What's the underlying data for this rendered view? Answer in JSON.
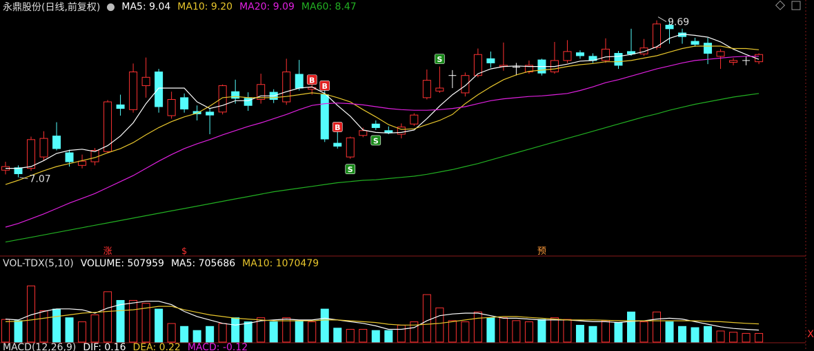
{
  "chart_data": [
    {
      "type": "candlestick",
      "title": "永鼎股份(日线,前复权)",
      "ylim": [
        5.78,
        10.03
      ],
      "up_color": "#ff3232",
      "down_color": "#54fcfc",
      "flat_color": "#ffffff",
      "open": [
        7.19,
        7.23,
        7.22,
        7.41,
        7.76,
        7.48,
        7.27,
        7.33,
        7.5,
        8.28,
        8.2,
        8.6,
        8.83,
        8.1,
        8.4,
        8.17,
        8.16,
        8.16,
        8.5,
        8.39,
        8.37,
        8.49,
        8.33,
        8.79,
        8.54,
        8.45,
        7.64,
        7.41,
        7.77,
        7.96,
        7.85,
        7.79,
        7.96,
        8.4,
        8.51,
        8.77,
        8.48,
        8.77,
        9.05,
        8.92,
        8.91,
        8.83,
        9.03,
        8.83,
        9.02,
        9.15,
        9.09,
        9.02,
        9.14,
        9.17,
        9.13,
        9.24,
        9.61,
        9.48,
        9.34,
        9.31,
        9.09,
        8.99,
        9.02,
        9.0
      ],
      "high": [
        7.33,
        7.27,
        7.75,
        7.84,
        7.99,
        7.53,
        7.45,
        7.56,
        8.36,
        8.45,
        8.97,
        9.07,
        8.88,
        8.5,
        8.47,
        8.27,
        8.22,
        8.62,
        8.7,
        8.49,
        8.8,
        8.54,
        9.05,
        9.03,
        8.62,
        8.52,
        7.83,
        7.75,
        7.9,
        8.02,
        7.92,
        7.97,
        8.14,
        8.87,
        8.92,
        8.86,
        8.82,
        9.22,
        9.17,
        9.32,
        8.98,
        9.02,
        9.05,
        9.33,
        9.36,
        9.19,
        9.14,
        9.39,
        9.18,
        9.55,
        9.38,
        9.69,
        9.69,
        9.55,
        9.4,
        9.4,
        9.21,
        9.06,
        9.09,
        9.14
      ],
      "low": [
        7.12,
        7.07,
        7.18,
        7.35,
        7.52,
        7.25,
        7.22,
        7.27,
        7.48,
        8.1,
        8.15,
        8.4,
        8.15,
        8.05,
        8.15,
        8.02,
        7.79,
        8.12,
        8.3,
        8.18,
        8.3,
        8.31,
        8.28,
        8.52,
        8.45,
        7.66,
        7.55,
        7.38,
        7.74,
        7.86,
        7.79,
        7.72,
        7.93,
        8.37,
        8.48,
        8.56,
        8.42,
        8.74,
        8.9,
        8.85,
        8.77,
        8.8,
        8.77,
        8.8,
        8.98,
        9.05,
        8.98,
        8.98,
        8.88,
        9.1,
        9.1,
        9.2,
        9.3,
        9.3,
        9.25,
        8.96,
        8.88,
        8.94,
        8.94,
        8.96
      ],
      "close": [
        7.25,
        7.13,
        7.7,
        7.72,
        7.55,
        7.33,
        7.34,
        7.52,
        8.33,
        8.22,
        8.83,
        8.74,
        8.25,
        8.37,
        8.21,
        8.13,
        8.11,
        8.6,
        8.39,
        8.27,
        8.62,
        8.37,
        8.83,
        8.56,
        8.57,
        7.71,
        7.59,
        7.73,
        7.85,
        7.9,
        7.82,
        7.91,
        8.11,
        8.69,
        8.56,
        8.77,
        8.77,
        9.12,
        8.98,
        8.94,
        8.91,
        8.94,
        8.81,
        9.02,
        9.17,
        9.1,
        9.02,
        9.21,
        8.94,
        9.13,
        9.23,
        9.63,
        9.55,
        9.42,
        9.29,
        9.14,
        9.17,
        9.02,
        9.02,
        9.12
      ],
      "series": [
        {
          "name": "MA5: 9.04",
          "color": "#ffffff",
          "values": [
            7.22,
            7.22,
            7.25,
            7.35,
            7.47,
            7.52,
            7.54,
            7.5,
            7.6,
            7.76,
            7.98,
            8.3,
            8.56,
            8.56,
            8.56,
            8.33,
            8.22,
            8.27,
            8.35,
            8.35,
            8.43,
            8.43,
            8.5,
            8.56,
            8.58,
            8.47,
            8.27,
            8.09,
            7.86,
            7.82,
            7.81,
            7.82,
            7.86,
            8.05,
            8.26,
            8.45,
            8.6,
            8.8,
            8.88,
            8.92,
            8.93,
            8.92,
            8.92,
            8.92,
            8.96,
            9.01,
            9.02,
            9.08,
            9.09,
            9.12,
            9.17,
            9.25,
            9.39,
            9.46,
            9.44,
            9.41,
            9.33,
            9.21,
            9.12,
            9.04
          ]
        },
        {
          "name": "MA10: 9.20",
          "color": "#e8c62c",
          "values": [
            6.95,
            7.02,
            7.1,
            7.18,
            7.25,
            7.3,
            7.35,
            7.4,
            7.48,
            7.55,
            7.65,
            7.78,
            7.9,
            8.0,
            8.08,
            8.14,
            8.26,
            8.4,
            8.42,
            8.4,
            8.4,
            8.4,
            8.42,
            8.45,
            8.48,
            8.46,
            8.4,
            8.33,
            8.2,
            8.08,
            7.95,
            7.87,
            7.88,
            7.95,
            8.02,
            8.12,
            8.3,
            8.45,
            8.58,
            8.7,
            8.78,
            8.84,
            8.86,
            8.88,
            8.92,
            8.95,
            8.97,
            9.0,
            9.0,
            9.02,
            9.06,
            9.1,
            9.16,
            9.22,
            9.26,
            9.26,
            9.26,
            9.22,
            9.22,
            9.2
          ]
        },
        {
          "name": "MA20: 9.09",
          "color": "#e020e0",
          "values": [
            6.24,
            6.3,
            6.38,
            6.46,
            6.55,
            6.64,
            6.72,
            6.8,
            6.9,
            7.0,
            7.1,
            7.22,
            7.34,
            7.45,
            7.55,
            7.63,
            7.7,
            7.78,
            7.85,
            7.92,
            7.98,
            8.05,
            8.12,
            8.2,
            8.27,
            8.3,
            8.31,
            8.3,
            8.28,
            8.25,
            8.22,
            8.2,
            8.19,
            8.19,
            8.2,
            8.22,
            8.25,
            8.3,
            8.35,
            8.38,
            8.4,
            8.42,
            8.43,
            8.45,
            8.47,
            8.52,
            8.58,
            8.65,
            8.7,
            8.76,
            8.82,
            8.88,
            8.93,
            8.98,
            9.02,
            9.04,
            9.06,
            9.08,
            9.09,
            9.09
          ]
        },
        {
          "name": "MA60: 8.47",
          "color": "#22b022",
          "values": [
            5.99,
            6.03,
            6.07,
            6.11,
            6.15,
            6.19,
            6.23,
            6.27,
            6.31,
            6.35,
            6.39,
            6.43,
            6.47,
            6.51,
            6.55,
            6.59,
            6.63,
            6.67,
            6.71,
            6.75,
            6.79,
            6.83,
            6.86,
            6.89,
            6.92,
            6.95,
            6.98,
            7.0,
            7.02,
            7.03,
            7.05,
            7.07,
            7.09,
            7.12,
            7.16,
            7.2,
            7.25,
            7.3,
            7.36,
            7.42,
            7.48,
            7.54,
            7.6,
            7.66,
            7.72,
            7.78,
            7.84,
            7.9,
            7.96,
            8.02,
            8.08,
            8.13,
            8.19,
            8.24,
            8.29,
            8.33,
            8.37,
            8.41,
            8.44,
            8.47
          ]
        }
      ],
      "extremes": [
        {
          "index": 51,
          "value": 9.69
        },
        {
          "index": 1,
          "value": 7.07
        }
      ],
      "signals": [
        {
          "index": 24,
          "label": "B"
        },
        {
          "index": 25,
          "label": "B"
        },
        {
          "index": 26,
          "label": "B"
        },
        {
          "index": 27,
          "label": "S"
        },
        {
          "index": 29,
          "label": "S"
        },
        {
          "index": 34,
          "label": "S"
        }
      ],
      "markers": [
        {
          "index": 8,
          "label": "涨"
        },
        {
          "index": 14,
          "label": "$"
        },
        {
          "index": 42,
          "label": "预"
        }
      ]
    },
    {
      "type": "bar",
      "title": "VOL-TDX(5,10)",
      "ylim": [
        0,
        4250000
      ],
      "series": [
        {
          "name": "VOLUME: 507959",
          "color": "#ffffff",
          "values": [
            1330000,
            1260000,
            3300000,
            1840000,
            1940000,
            1430000,
            1190000,
            1600000,
            2960000,
            2450000,
            2450000,
            2280000,
            1940000,
            1090000,
            920000,
            680000,
            920000,
            1090000,
            1430000,
            1190000,
            1430000,
            1190000,
            1430000,
            1260000,
            1190000,
            1940000,
            820000,
            750000,
            750000,
            680000,
            680000,
            990000,
            1190000,
            2790000,
            2010000,
            1260000,
            1190000,
            1770000,
            1430000,
            1430000,
            1260000,
            1190000,
            1330000,
            1430000,
            1330000,
            990000,
            920000,
            1260000,
            1160000,
            1770000,
            1190000,
            1770000,
            1190000,
            920000,
            850000,
            920000,
            650000,
            580000,
            510000,
            507959
          ]
        },
        {
          "name": "MA5: 705686",
          "color": "#ffffff",
          "values": [
            1350000,
            1300000,
            1600000,
            1800000,
            1950000,
            1950000,
            1900000,
            1700000,
            2000000,
            2200000,
            2300000,
            2400000,
            2400000,
            2200000,
            1800000,
            1500000,
            1300000,
            1100000,
            1000000,
            1100000,
            1250000,
            1300000,
            1350000,
            1300000,
            1300000,
            1400000,
            1300000,
            1200000,
            1100000,
            950000,
            750000,
            750000,
            850000,
            1250000,
            1550000,
            1650000,
            1700000,
            1700000,
            1550000,
            1400000,
            1400000,
            1350000,
            1300000,
            1300000,
            1300000,
            1250000,
            1200000,
            1200000,
            1150000,
            1220000,
            1250000,
            1350000,
            1400000,
            1350000,
            1200000,
            1050000,
            900000,
            800000,
            750000,
            705686
          ]
        },
        {
          "name": "MA10: 1070479",
          "color": "#e8c62c",
          "values": [
            1200000,
            1220000,
            1300000,
            1400000,
            1500000,
            1600000,
            1700000,
            1750000,
            1800000,
            1850000,
            1900000,
            2000000,
            2100000,
            2100000,
            1900000,
            1750000,
            1600000,
            1500000,
            1400000,
            1350000,
            1300000,
            1250000,
            1250000,
            1250000,
            1250000,
            1300000,
            1300000,
            1250000,
            1200000,
            1150000,
            1050000,
            1000000,
            1000000,
            1050000,
            1100000,
            1200000,
            1300000,
            1400000,
            1450000,
            1500000,
            1500000,
            1450000,
            1400000,
            1350000,
            1300000,
            1300000,
            1300000,
            1280000,
            1260000,
            1250000,
            1250000,
            1250000,
            1250000,
            1250000,
            1250000,
            1220000,
            1200000,
            1150000,
            1100000,
            1070479
          ]
        }
      ]
    },
    {
      "type": "macd",
      "title": "MACD(12,26,9)",
      "series": [
        {
          "name": "DIF: 0.16",
          "color": "#ffffff"
        },
        {
          "name": "DEA: 0.22",
          "color": "#e8c62c"
        },
        {
          "name": "MACD: -0.12",
          "color": "#e020e0"
        }
      ]
    }
  ]
}
